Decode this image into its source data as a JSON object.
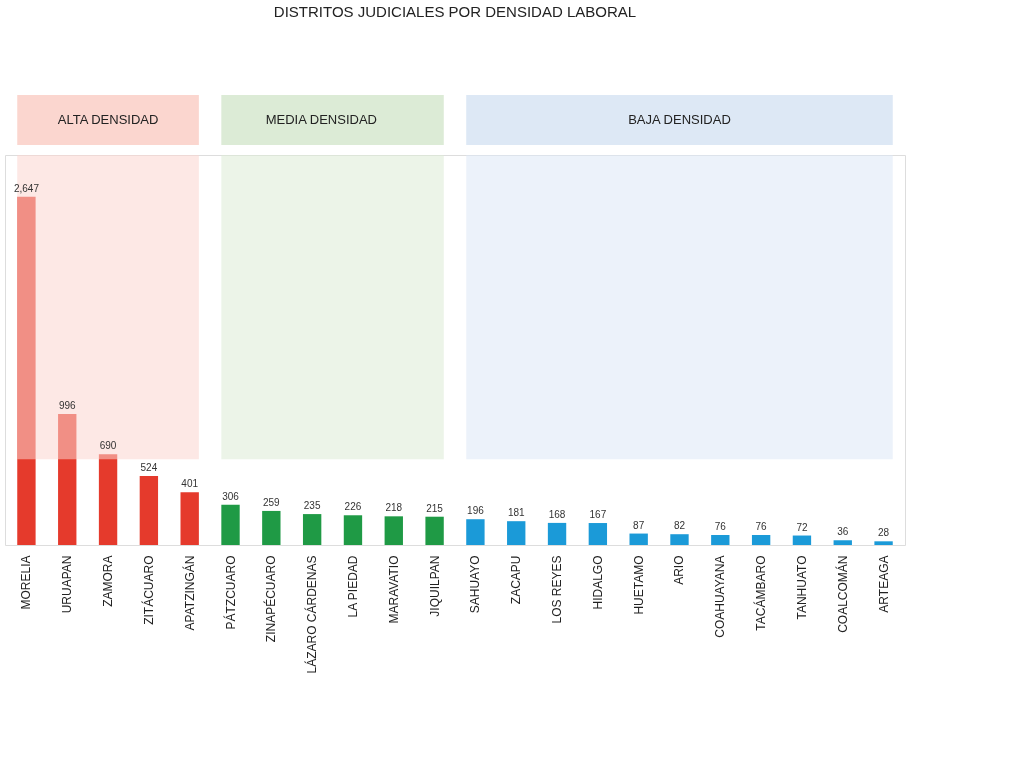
{
  "chart_data": {
    "type": "bar",
    "title": "DISTRITOS JUDICIALES POR DENSIDAD LABORAL",
    "categories": [
      "MORELIA",
      "URUAPAN",
      "ZAMORA",
      "ZITÁCUARO",
      "APATZINGÁN",
      "PÁTZCUARO",
      "ZINAPÉCUARO",
      "LÁZARO CÁRDENAS",
      "LA PIEDAD",
      "MARAVATIO",
      "JIQUILPAN",
      "SAHUAYO",
      "ZACAPU",
      "LOS REYES",
      "HIDALGO",
      "HUETAMO",
      "ARIO",
      "COAHUAYANA",
      "TACÁMBARO",
      "TANHUATO",
      "COALCOMÁN",
      "ARTEAGA"
    ],
    "values": [
      2647,
      996,
      690,
      524,
      401,
      306,
      259,
      235,
      226,
      218,
      215,
      196,
      181,
      168,
      167,
      87,
      82,
      76,
      76,
      72,
      36,
      28
    ],
    "colors": [
      "#e53a2c",
      "#e53a2c",
      "#e53a2c",
      "#e53a2c",
      "#e53a2c",
      "#1f9a45",
      "#1f9a45",
      "#1f9a45",
      "#1f9a45",
      "#1f9a45",
      "#1f9a45",
      "#1b9ad8",
      "#1b9ad8",
      "#1b9ad8",
      "#1b9ad8",
      "#1b9ad8",
      "#1b9ad8",
      "#1b9ad8",
      "#1b9ad8",
      "#1b9ad8",
      "#1b9ad8",
      "#1b9ad8"
    ],
    "value_labels": [
      "2,647",
      "996",
      "690",
      "524",
      "401",
      "306",
      "259",
      "235",
      "226",
      "218",
      "215",
      "196",
      "181",
      "168",
      "167",
      "87",
      "82",
      "76",
      "76",
      "72",
      "36",
      "28"
    ],
    "bands": [
      {
        "axis": "x",
        "from": "MORELIA",
        "to": "APATZINGÁN",
        "label": "ALTA DENSIDAD",
        "color": "#fbd6cf"
      },
      {
        "axis": "x",
        "from": "PÁTZCUARO",
        "to": "JIQUILPAN",
        "label": "MEDIA DENSIDAD",
        "color": "#dcebd6"
      },
      {
        "axis": "x",
        "from": "SAHUAYO",
        "to": "ARTEAGA",
        "label": "BAJA DENSIDAD",
        "color": "#dde8f5"
      }
    ]
  }
}
